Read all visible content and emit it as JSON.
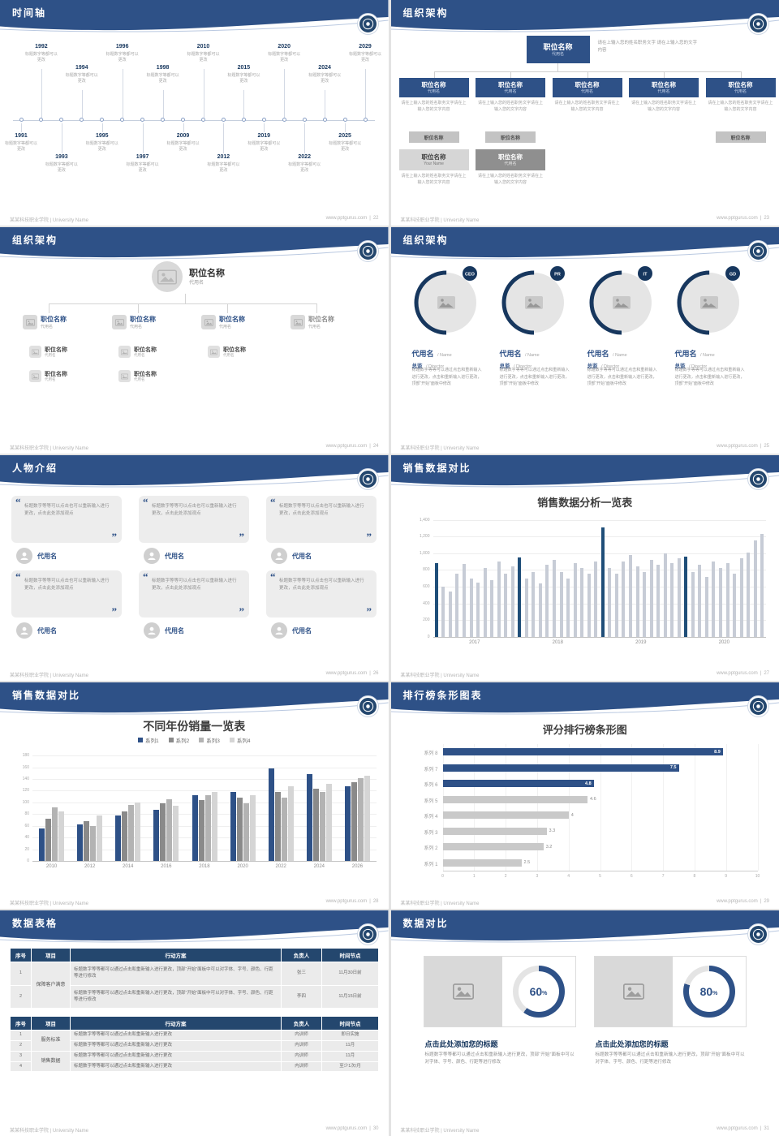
{
  "theme": {
    "accent": "#2e5187",
    "navy": "#17375e",
    "bar_blue": "#1f4e79",
    "bar_gray": "#c7ccd6"
  },
  "footer": {
    "school": "某某科技职业学院 | University Name",
    "site": "www.pptgurus.com",
    "sep": "|"
  },
  "slides": {
    "timeline": {
      "title": "时间轴",
      "page": "22",
      "caption": "标题数字等都可以更改",
      "items": [
        {
          "year": "1991",
          "side": "bottom",
          "far": false
        },
        {
          "year": "1992",
          "side": "top",
          "far": true
        },
        {
          "year": "1993",
          "side": "bottom",
          "far": true
        },
        {
          "year": "1994",
          "side": "top",
          "far": false
        },
        {
          "year": "1995",
          "side": "bottom",
          "far": false
        },
        {
          "year": "1996",
          "side": "top",
          "far": true
        },
        {
          "year": "1997",
          "side": "bottom",
          "far": true
        },
        {
          "year": "1998",
          "side": "top",
          "far": false
        },
        {
          "year": "2009",
          "side": "bottom",
          "far": false
        },
        {
          "year": "2010",
          "side": "top",
          "far": true
        },
        {
          "year": "2012",
          "side": "bottom",
          "far": true
        },
        {
          "year": "2015",
          "side": "top",
          "far": false
        },
        {
          "year": "2019",
          "side": "bottom",
          "far": false
        },
        {
          "year": "2020",
          "side": "top",
          "far": true
        },
        {
          "year": "2022",
          "side": "bottom",
          "far": true
        },
        {
          "year": "2024",
          "side": "top",
          "far": false
        },
        {
          "year": "2025",
          "side": "bottom",
          "far": false
        },
        {
          "year": "2029",
          "side": "top",
          "far": true
        }
      ]
    },
    "org_boxes": {
      "title": "组织架构",
      "page": "23",
      "root": {
        "title": "职位名称",
        "sub": "代用名"
      },
      "root_note": "请在上输入您的姓名职务文字 请在上输入您的文字内容",
      "cols": [
        {
          "title": "职位名称",
          "sub": "代用名",
          "note": "请在上输入您的姓名职务文字请在上输入您的文字内容"
        },
        {
          "title": "职位名称",
          "sub": "代用名",
          "note": "请在上输入您的姓名职务文字请在上输入您的文字内容"
        },
        {
          "title": "职位名称",
          "sub": "代用名",
          "note": "请在上输入您的姓名职务文字请在上输入您的文字内容"
        },
        {
          "title": "职位名称",
          "sub": "代用名",
          "note": "请在上输入您的姓名职务文字请在上输入您的文字内容"
        },
        {
          "title": "职位名称",
          "sub": "代用名",
          "note": "请在上输入您的姓名职务文字请在上输入您的文字内容"
        }
      ],
      "minis": [
        "职位名称",
        "职位名称",
        "职位名称"
      ],
      "extras": [
        {
          "title": "职位名称",
          "sub": "Your Name",
          "note": "请在上输入您的姓名职务文字请在上输入您的文字内容"
        },
        {
          "title": "职位名称",
          "sub": "代用名",
          "note": "请在上输入您的姓名职务文字请在上输入您的文字内容"
        }
      ]
    },
    "org_tree": {
      "title": "组织架构",
      "page": "24",
      "root": {
        "title": "职位名称",
        "sub": "代用名"
      },
      "branches": [
        {
          "title": "职位名称",
          "sub": "代用名",
          "muted": false,
          "children": [
            {
              "title": "职位名称",
              "sub": "代用名"
            },
            {
              "title": "职位名称",
              "sub": "代用名"
            }
          ]
        },
        {
          "title": "职位名称",
          "sub": "代用名",
          "muted": false,
          "children": [
            {
              "title": "职位名称",
              "sub": "代用名"
            },
            {
              "title": "职位名称",
              "sub": "代用名"
            }
          ]
        },
        {
          "title": "职位名称",
          "sub": "代用名",
          "muted": false,
          "children": [
            {
              "title": "职位名称",
              "sub": "代用名"
            }
          ]
        },
        {
          "title": "职位名称",
          "sub": "代用名",
          "muted": true,
          "children": []
        }
      ]
    },
    "org_circles": {
      "title": "组织架构",
      "page": "25",
      "members": [
        {
          "badge": "CEO",
          "name": "代用名",
          "name_en": "/ Name",
          "role": "总监",
          "role_en": "/ Director",
          "caption": "标题数字等等可以通过点击和重新输入进行更改，点击和重新输入进行更改，顶部“开始”面板中修改"
        },
        {
          "badge": "PR",
          "name": "代用名",
          "name_en": "/ Name",
          "role": "总监",
          "role_en": "/ Director",
          "caption": "标题数字等等可以通过点击和重新输入进行更改，点击和重新输入进行更改，顶部“开始”面板中修改"
        },
        {
          "badge": "IT",
          "name": "代用名",
          "name_en": "/ Name",
          "role": "总监",
          "role_en": "/ Director",
          "caption": "标题数字等等可以通过点击和重新输入进行更改，点击和重新输入进行更改，顶部“开始”面板中修改"
        },
        {
          "badge": "GD",
          "name": "代用名",
          "name_en": "/ Name",
          "role": "总监",
          "role_en": "/ Director",
          "caption": "标题数字等等可以通过点击和重新输入进行更改，点击和重新输入进行更改，顶部“开始”面板中修改"
        }
      ]
    },
    "people": {
      "title": "人物介绍",
      "page": "26",
      "cards": [
        {
          "quote": "标题数字等等可以点击也可以重新输入进行更改，点击此处添加观点",
          "name": "代用名"
        },
        {
          "quote": "标题数字等等可以点击也可以重新输入进行更改，点击此处添加观点",
          "name": "代用名"
        },
        {
          "quote": "标题数字等等可以点击也可以重新输入进行更改，点击此处添加观点",
          "name": "代用名"
        },
        {
          "quote": "标题数字等等可以点击也可以重新输入进行更改，点击此处添加观点",
          "name": "代用名"
        },
        {
          "quote": "标题数字等等可以点击也可以重新输入进行更改，点击此处添加观点",
          "name": "代用名"
        },
        {
          "quote": "标题数字等等可以点击也可以重新输入进行更改，点击此处添加观点",
          "name": "代用名"
        }
      ]
    },
    "sales_chart": {
      "title": "销售数据对比",
      "page": "27",
      "chart_data": {
        "type": "bar",
        "title": "销售数据分析一览表",
        "ylim": [
          0,
          1400
        ],
        "ytick": 200,
        "y_labels": [
          "0",
          "200",
          "400",
          "600",
          "800",
          "1,000",
          "1,200",
          "1,400"
        ],
        "x_labels": [
          "2017",
          "2018",
          "2019",
          "2020"
        ],
        "group_size": 12,
        "highlight_indices": [
          0,
          12,
          24,
          36
        ],
        "values": [
          880,
          600,
          540,
          760,
          870,
          700,
          650,
          820,
          680,
          900,
          760,
          840,
          950,
          700,
          780,
          640,
          860,
          920,
          780,
          700,
          880,
          820,
          760,
          900,
          1310,
          820,
          760,
          900,
          980,
          840,
          780,
          920,
          860,
          1000,
          880,
          940,
          960,
          780,
          860,
          720,
          900,
          820,
          880,
          760,
          940,
          1010,
          1150,
          1230
        ]
      }
    },
    "year_chart": {
      "title": "销售数据对比",
      "page": "28",
      "chart_data": {
        "type": "bar",
        "title": "不同年份销量一览表",
        "categories": [
          "2010",
          "2012",
          "2014",
          "2016",
          "2018",
          "2020",
          "2022",
          "2024",
          "2026"
        ],
        "ylim": [
          0,
          180
        ],
        "ytick": 20,
        "series": [
          {
            "name": "系列1",
            "color": "#2e5187",
            "values": [
              55,
              62,
              78,
              88,
              112,
              118,
              158,
              148,
              128
            ]
          },
          {
            "name": "系列2",
            "color": "#8a8a8a",
            "values": [
              72,
              68,
              85,
              98,
              104,
              108,
              118,
              124,
              134
            ]
          },
          {
            "name": "系列3",
            "color": "#b3b3b3",
            "values": [
              92,
              60,
              96,
              106,
              112,
              98,
              108,
              118,
              142
            ]
          },
          {
            "name": "系列4",
            "color": "#d5d5d5",
            "values": [
              84,
              78,
              100,
              94,
              118,
              112,
              128,
              132,
              146
            ]
          }
        ]
      }
    },
    "rank_chart": {
      "title": "排行榜条形图表",
      "page": "29",
      "chart_data": {
        "type": "bar",
        "title": "评分排行榜条形图",
        "categories": [
          "系列 8",
          "系列 7",
          "系列 6",
          "系列 5",
          "系列 4",
          "系列 3",
          "系列 2",
          "系列 1"
        ],
        "values": [
          8.9,
          7.5,
          4.8,
          4.6,
          4,
          3.3,
          3.2,
          2.5
        ],
        "highlight_count": 3,
        "xlim": [
          0,
          10
        ],
        "xtick": 1
      }
    },
    "tables": {
      "title": "数据表格",
      "page": "30",
      "headers": [
        "序号",
        "项目",
        "行动方案",
        "负责人",
        "时间节点"
      ],
      "table1": {
        "group": "保障客户满意",
        "plan": "标题数字等等都可以通过点击和重新输入进行更改，顶部“开始”面板中可以对字体、字号、颜色、行距等进行修改",
        "rows": [
          {
            "no": "1",
            "owner": "张三",
            "time": "11月30日前"
          },
          {
            "no": "2",
            "owner": "李四",
            "time": "11月15日前"
          }
        ]
      },
      "table2": {
        "plan": "标题数字等等都可以通过点击和重新输入进行更改",
        "groups": [
          {
            "label": "服务标准",
            "span": 2
          },
          {
            "label": "销售数据",
            "span": 2
          }
        ],
        "rows": [
          {
            "no": "1",
            "owner": "内训师",
            "time": "即日实施"
          },
          {
            "no": "2",
            "owner": "内训师",
            "time": "11月"
          },
          {
            "no": "3",
            "owner": "内训师",
            "time": "11月"
          },
          {
            "no": "4",
            "owner": "内训师",
            "time": "至少1次/月"
          }
        ]
      }
    },
    "compare": {
      "title": "数据对比",
      "page": "31",
      "panels": [
        {
          "percent": "60",
          "percent_sign": "%",
          "title": "点击此处添加您的标题",
          "caption": "标题数字等等都可以通过点击和重新输入进行更改，顶部“开始”面板中可以对字体、字号、颜色、行距等进行修改"
        },
        {
          "percent": "80",
          "percent_sign": "%",
          "title": "点击此处添加您的标题",
          "caption": "标题数字等等都可以通过点击和重新输入进行更改，顶部“开始”面板中可以对字体、字号、颜色、行距等进行修改"
        }
      ]
    }
  }
}
